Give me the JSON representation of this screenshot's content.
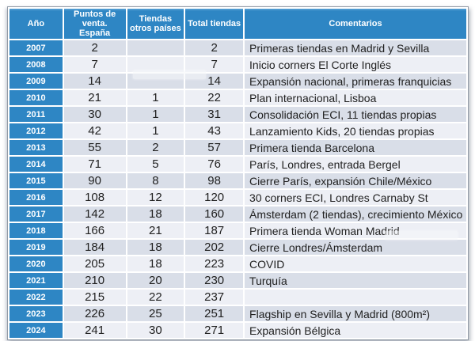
{
  "colors": {
    "header_blue": "#2e86c4",
    "header_text": "#ffffff",
    "row_dark": "#d9dee8",
    "row_light": "#edeff5",
    "text": "#212121",
    "border": "#929ba6"
  },
  "chart_data": {
    "type": "table",
    "columns": [
      "Año",
      "Puntos de venta. España",
      "Tiendas otros países",
      "Total tiendas",
      "Comentarios"
    ],
    "rows": [
      {
        "year": "2007",
        "spain": "2",
        "other": "",
        "total": "2",
        "comment": "Primeras tiendas en Madrid y Sevilla"
      },
      {
        "year": "2008",
        "spain": "7",
        "other": "",
        "total": "7",
        "comment": "Inicio corners El Corte Inglés"
      },
      {
        "year": "2009",
        "spain": "14",
        "other": "",
        "total": "14",
        "comment": "Expansión nacional, primeras franquicias"
      },
      {
        "year": "2010",
        "spain": "21",
        "other": "1",
        "total": "22",
        "comment": "Plan internacional, Lisboa"
      },
      {
        "year": "2011",
        "spain": "30",
        "other": "1",
        "total": "31",
        "comment": "Consolidación ECI, 11 tiendas propias"
      },
      {
        "year": "2012",
        "spain": "42",
        "other": "1",
        "total": "43",
        "comment": "Lanzamiento Kids, 20 tiendas propias"
      },
      {
        "year": "2013",
        "spain": "55",
        "other": "2",
        "total": "57",
        "comment": "Primera tienda Barcelona"
      },
      {
        "year": "2014",
        "spain": "71",
        "other": "5",
        "total": "76",
        "comment": "París, Londres, entrada Bergel"
      },
      {
        "year": "2015",
        "spain": "90",
        "other": "8",
        "total": "98",
        "comment": "Cierre París, expansión Chile/México"
      },
      {
        "year": "2016",
        "spain": "108",
        "other": "12",
        "total": "120",
        "comment": "30 corners ECI, Londres Carnaby St"
      },
      {
        "year": "2017",
        "spain": "142",
        "other": "18",
        "total": "160",
        "comment": "Ámsterdam (2 tiendas), crecimiento México"
      },
      {
        "year": "2018",
        "spain": "166",
        "other": "21",
        "total": "187",
        "comment": "Primera tienda Woman Madrid"
      },
      {
        "year": "2019",
        "spain": "184",
        "other": "18",
        "total": "202",
        "comment": "Cierre Londres/Ámsterdam"
      },
      {
        "year": "2020",
        "spain": "205",
        "other": "18",
        "total": "223",
        "comment": "COVID"
      },
      {
        "year": "2021",
        "spain": "210",
        "other": "20",
        "total": "230",
        "comment": "Turquía"
      },
      {
        "year": "2022",
        "spain": "215",
        "other": "22",
        "total": "237",
        "comment": ""
      },
      {
        "year": "2023",
        "spain": "226",
        "other": "25",
        "total": "251",
        "comment": "Flagship en Sevilla y Madrid (800m²)"
      },
      {
        "year": "2024",
        "spain": "241",
        "other": "30",
        "total": "271",
        "comment": "Expansión Bélgica"
      }
    ]
  }
}
